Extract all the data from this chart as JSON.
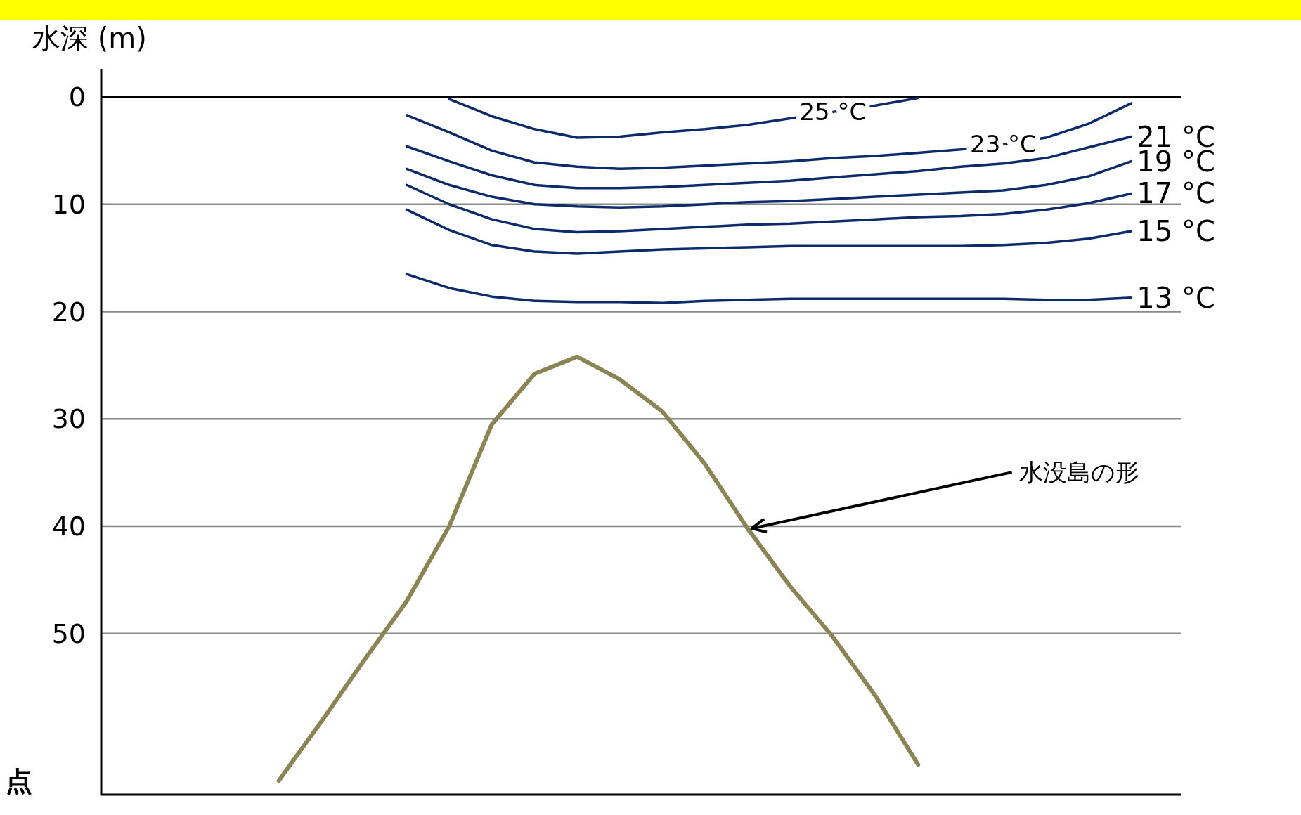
{
  "chart_data": {
    "type": "line",
    "ylabel": "水深 (m)",
    "xlabel": "点",
    "categories": [
      null,
      null,
      null,
      null,
      null,
      null,
      null,
      null,
      null,
      null,
      null,
      null,
      null,
      null,
      null,
      null,
      null,
      null,
      null,
      null,
      null,
      null,
      null,
      null,
      null,
      null
    ],
    "ylim": [
      65,
      0
    ],
    "yticks": [
      0,
      10,
      20,
      30,
      40,
      50
    ],
    "grid": "y",
    "tick_labels": "y",
    "marker": "none",
    "line_style": "solid",
    "series": [
      {
        "name": "25 °C",
        "color": "#0d2a6b",
        "values": [
          null,
          null,
          null,
          null,
          null,
          null,
          null,
          null,
          0.2,
          1.8,
          3.0,
          3.8,
          3.7,
          3.3,
          3.0,
          2.6,
          2.0,
          1.4,
          0.8,
          0.1,
          null,
          null,
          null,
          null,
          null,
          null
        ]
      },
      {
        "name": "23 °C",
        "color": "#0d2a6b",
        "values": [
          null,
          null,
          null,
          null,
          null,
          null,
          null,
          1.7,
          3.3,
          5.0,
          6.1,
          6.5,
          6.7,
          6.6,
          6.4,
          6.2,
          6.0,
          5.7,
          5.5,
          5.2,
          4.9,
          4.4,
          3.8,
          2.5,
          0.6,
          null
        ]
      },
      {
        "name": "21 °C",
        "color": "#0d2a6b",
        "values": [
          null,
          null,
          null,
          null,
          null,
          null,
          null,
          4.6,
          6.0,
          7.3,
          8.2,
          8.5,
          8.5,
          8.4,
          8.2,
          8.0,
          7.8,
          7.5,
          7.2,
          6.9,
          6.5,
          6.2,
          5.7,
          4.7,
          3.7,
          null
        ]
      },
      {
        "name": "19 °C",
        "color": "#0d2a6b",
        "values": [
          null,
          null,
          null,
          null,
          null,
          null,
          null,
          6.7,
          8.2,
          9.3,
          10.0,
          10.2,
          10.3,
          10.2,
          10.0,
          9.8,
          9.7,
          9.5,
          9.3,
          9.1,
          8.9,
          8.7,
          8.2,
          7.4,
          6.0,
          null
        ]
      },
      {
        "name": "17 °C",
        "color": "#0d2a6b",
        "values": [
          null,
          null,
          null,
          null,
          null,
          null,
          null,
          8.2,
          10.0,
          11.4,
          12.3,
          12.6,
          12.5,
          12.3,
          12.1,
          11.9,
          11.8,
          11.6,
          11.4,
          11.2,
          11.1,
          10.9,
          10.5,
          9.9,
          9.0,
          null
        ]
      },
      {
        "name": "15 °C",
        "color": "#0d2a6b",
        "values": [
          null,
          null,
          null,
          null,
          null,
          null,
          null,
          10.5,
          12.4,
          13.8,
          14.4,
          14.6,
          14.4,
          14.2,
          14.1,
          14.0,
          13.9,
          13.9,
          13.9,
          13.9,
          13.9,
          13.8,
          13.6,
          13.2,
          12.5,
          null
        ]
      },
      {
        "name": "13 °C",
        "color": "#0d2a6b",
        "values": [
          null,
          null,
          null,
          null,
          null,
          null,
          null,
          16.5,
          17.8,
          18.6,
          19.0,
          19.1,
          19.1,
          19.2,
          19.0,
          18.9,
          18.8,
          18.8,
          18.8,
          18.8,
          18.8,
          18.8,
          18.9,
          18.9,
          18.7,
          null
        ]
      },
      {
        "color": "#8b8455",
        "values": [
          null,
          null,
          null,
          null,
          63.7,
          58.2,
          52.5,
          47.0,
          40.0,
          30.5,
          25.8,
          24.2,
          26.3,
          29.3,
          34.2,
          40.2,
          45.6,
          50.3,
          55.8,
          62.2,
          null,
          null,
          null,
          null,
          null,
          null
        ]
      }
    ],
    "annotations": [
      "水没島の形"
    ]
  }
}
